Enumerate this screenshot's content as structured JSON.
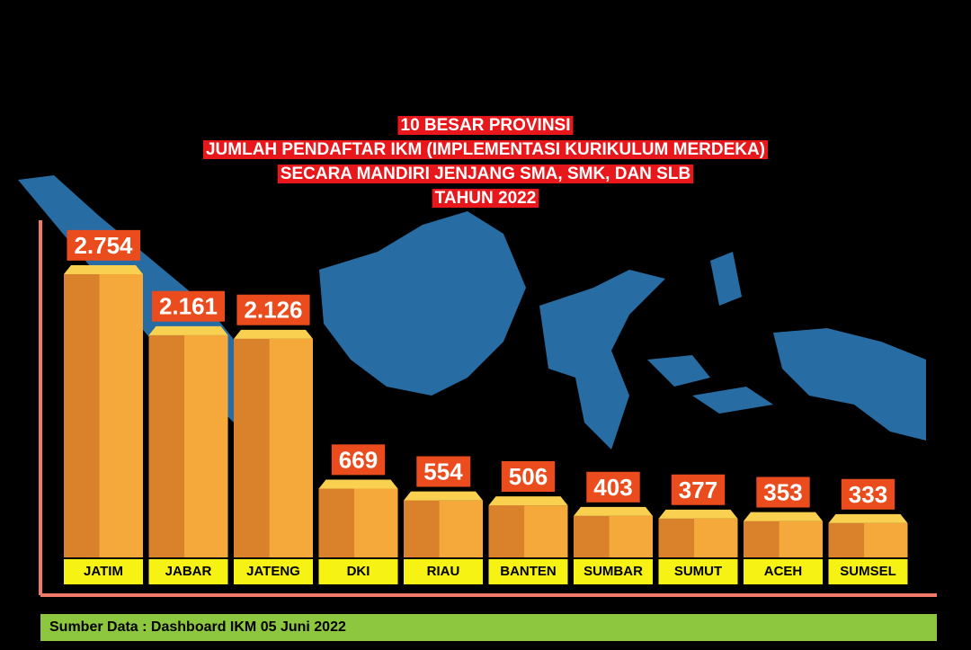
{
  "chart_data": {
    "type": "bar",
    "title": [
      "10 BESAR PROVINSI",
      "JUMLAH PENDAFTAR IKM (IMPLEMENTASI KURIKULUM MERDEKA)",
      "SECARA MANDIRI JENJANG SMA, SMK, DAN SLB",
      "TAHUN 2022"
    ],
    "categories": [
      "JATIM",
      "JABAR",
      "JATENG",
      "DKI",
      "RIAU",
      "BANTEN",
      "SUMBAR",
      "SUMUT",
      "ACEH",
      "SUMSEL"
    ],
    "values": [
      2754,
      2161,
      2126,
      669,
      554,
      506,
      403,
      377,
      353,
      333
    ],
    "value_labels": [
      "2.754",
      "2.161",
      "2.126",
      "669",
      "554",
      "506",
      "403",
      "377",
      "353",
      "333"
    ],
    "color": "#f6a93b",
    "source": "Sumber Data : Dashboard IKM 05 Juni 2022"
  }
}
